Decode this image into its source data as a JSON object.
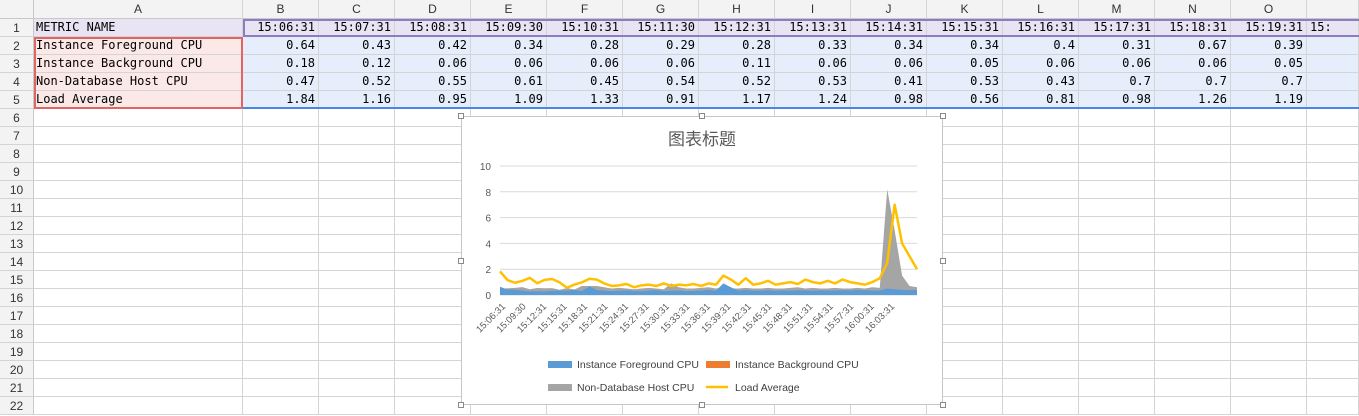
{
  "sheet": {
    "columns": [
      "A",
      "B",
      "C",
      "D",
      "E",
      "F",
      "G",
      "H",
      "I",
      "J",
      "K",
      "L",
      "M",
      "N",
      "O"
    ],
    "row_numbers": [
      "1",
      "2",
      "3",
      "4",
      "5",
      "6",
      "7",
      "8",
      "9",
      "10",
      "11",
      "12",
      "13",
      "14",
      "15",
      "16",
      "17",
      "18",
      "19",
      "20",
      "21",
      "22"
    ],
    "header_row": [
      "METRIC NAME",
      "15:06:31",
      "15:07:31",
      "15:08:31",
      "15:09:30",
      "15:10:31",
      "15:11:30",
      "15:12:31",
      "15:13:31",
      "15:14:31",
      "15:15:31",
      "15:16:31",
      "15:17:31",
      "15:18:31",
      "15:19:31",
      "15:"
    ],
    "rows": [
      [
        "Instance Foreground CPU",
        "0.64",
        "0.43",
        "0.42",
        "0.34",
        "0.28",
        "0.29",
        "0.28",
        "0.33",
        "0.34",
        "0.34",
        "0.4",
        "0.31",
        "0.67",
        "0.39"
      ],
      [
        "Instance Background CPU",
        "0.18",
        "0.12",
        "0.06",
        "0.06",
        "0.06",
        "0.06",
        "0.11",
        "0.06",
        "0.06",
        "0.05",
        "0.06",
        "0.06",
        "0.06",
        "0.05"
      ],
      [
        "Non-Database Host CPU",
        "0.47",
        "0.52",
        "0.55",
        "0.61",
        "0.45",
        "0.54",
        "0.52",
        "0.53",
        "0.41",
        "0.53",
        "0.43",
        "0.7",
        "0.7",
        "0.7"
      ],
      [
        "Load Average",
        "1.84",
        "1.16",
        "0.95",
        "1.09",
        "1.33",
        "0.91",
        "1.17",
        "1.24",
        "0.98",
        "0.56",
        "0.81",
        "0.98",
        "1.26",
        "1.19"
      ]
    ]
  },
  "chart_data": {
    "type": "area",
    "title": "图表标题",
    "xlabel": "",
    "ylabel": "",
    "ylim": [
      0,
      10
    ],
    "yticks": [
      "0",
      "2",
      "4",
      "6",
      "8",
      "10"
    ],
    "x_tick_labels": [
      "15:06:31",
      "15:09:30",
      "15:12:31",
      "15:15:31",
      "15:18:31",
      "15:21:31",
      "15:24:31",
      "15:27:31",
      "15:30:31",
      "15:33:31",
      "15:36:31",
      "15:39:31",
      "15:42:31",
      "15:45:31",
      "15:48:31",
      "15:51:31",
      "15:54:31",
      "15:57:31",
      "16:00:31",
      "16:03:31"
    ],
    "legend_position": "bottom",
    "series": [
      {
        "name": "Instance Foreground CPU",
        "color": "#5b9bd5",
        "type": "area",
        "values": [
          0.64,
          0.43,
          0.42,
          0.34,
          0.28,
          0.29,
          0.28,
          0.33,
          0.34,
          0.34,
          0.4,
          0.31,
          0.67,
          0.39,
          0.35,
          0.3,
          0.33,
          0.36,
          0.32,
          0.3,
          0.35,
          0.38,
          0.3,
          0.33,
          0.36,
          0.3,
          0.32,
          0.35,
          0.4,
          0.33,
          0.9,
          0.6,
          0.35,
          0.4,
          0.33,
          0.35,
          0.38,
          0.33,
          0.36,
          0.34,
          0.38,
          0.35,
          0.33,
          0.36,
          0.34,
          0.35,
          0.38,
          0.36,
          0.4,
          0.38,
          0.34,
          0.36,
          0.5,
          0.45,
          0.4,
          0.38,
          0.4
        ]
      },
      {
        "name": "Instance Background CPU",
        "color": "#ed7d31",
        "type": "area",
        "values": [
          0.18,
          0.12,
          0.06,
          0.06,
          0.06,
          0.06,
          0.11,
          0.06,
          0.06,
          0.05,
          0.06,
          0.06,
          0.06,
          0.05,
          0.06,
          0.06,
          0.05,
          0.06,
          0.06,
          0.05,
          0.06,
          0.06,
          0.06,
          0.05,
          0.06,
          0.06,
          0.06,
          0.05,
          0.06,
          0.06,
          0.08,
          0.07,
          0.06,
          0.06,
          0.05,
          0.06,
          0.06,
          0.05,
          0.06,
          0.06,
          0.05,
          0.06,
          0.06,
          0.05,
          0.06,
          0.06,
          0.05,
          0.06,
          0.06,
          0.05,
          0.06,
          0.06,
          0.08,
          0.07,
          0.06,
          0.06,
          0.06
        ]
      },
      {
        "name": "Non-Database Host CPU",
        "color": "#a5a5a5",
        "type": "area",
        "values": [
          0.47,
          0.52,
          0.55,
          0.61,
          0.45,
          0.54,
          0.52,
          0.53,
          0.41,
          0.53,
          0.43,
          0.7,
          0.7,
          0.7,
          0.6,
          0.5,
          0.55,
          0.5,
          0.45,
          0.5,
          0.55,
          0.5,
          0.45,
          0.9,
          0.6,
          0.5,
          0.5,
          0.55,
          0.6,
          0.5,
          0.6,
          0.5,
          0.5,
          0.55,
          0.5,
          0.5,
          0.55,
          0.5,
          0.5,
          0.55,
          0.6,
          0.5,
          0.55,
          0.5,
          0.5,
          0.55,
          0.5,
          0.5,
          0.55,
          0.5,
          0.6,
          0.55,
          8.2,
          5.0,
          1.5,
          0.7,
          0.6
        ]
      },
      {
        "name": "Load Average",
        "color": "#ffc000",
        "type": "line",
        "values": [
          1.84,
          1.16,
          0.95,
          1.09,
          1.33,
          0.91,
          1.17,
          1.24,
          0.98,
          0.56,
          0.81,
          0.98,
          1.26,
          1.19,
          0.9,
          0.7,
          0.75,
          0.85,
          0.6,
          0.75,
          0.8,
          0.7,
          0.9,
          0.7,
          0.8,
          0.75,
          0.85,
          0.7,
          0.9,
          0.8,
          1.5,
          1.2,
          0.8,
          1.3,
          0.8,
          0.9,
          1.1,
          0.8,
          0.9,
          1.0,
          0.85,
          1.2,
          1.0,
          0.9,
          1.1,
          0.9,
          1.2,
          1.0,
          0.9,
          0.8,
          1.0,
          1.3,
          2.5,
          7.0,
          4.0,
          3.0,
          2.0
        ]
      }
    ]
  }
}
